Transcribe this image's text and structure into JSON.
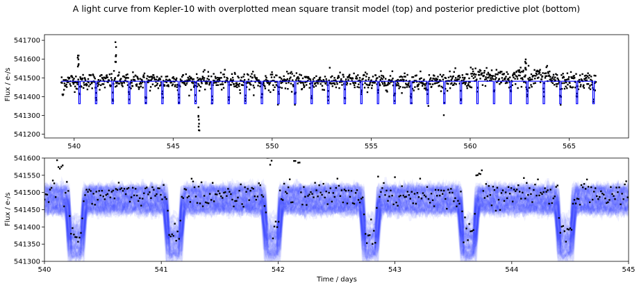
{
  "title": "A light curve from Kepler-10 with overplotted mean square transit model (top) and posterior predictive plot (bottom)",
  "colors": {
    "data": "#000000",
    "model": "#0000ff",
    "posterior": "#1f2bff",
    "axes": "#000000"
  },
  "chart_data": [
    {
      "type": "line",
      "panel": "top",
      "title": "",
      "xlabel": "",
      "ylabel": "Flux / e-/s",
      "xlim": [
        538.5,
        568.0
      ],
      "ylim": [
        541180,
        541730
      ],
      "x_ticks": [
        540,
        545,
        550,
        555,
        560,
        565
      ],
      "y_ticks": [
        541200,
        541300,
        541400,
        541500,
        541600,
        541700
      ],
      "grid": false,
      "data_range": [
        539.35,
        566.35
      ],
      "baseline_flux": 541482,
      "transit_flux": 541362,
      "transit_period": 0.8375,
      "transit_epoch": 540.27,
      "transit_duration": 0.075,
      "noise_sigma": 22,
      "events": [
        {
          "x": 540.2,
          "y": 541630,
          "label": ""
        },
        {
          "x": 542.1,
          "y": 541700,
          "label": ""
        },
        {
          "x": 546.3,
          "y": 541215,
          "label": ""
        },
        {
          "x": 562.8,
          "y": 541600,
          "label": ""
        }
      ],
      "series": [
        {
          "name": "",
          "style": "data points"
        },
        {
          "name": "",
          "style": "transit model"
        }
      ]
    },
    {
      "type": "line",
      "panel": "bottom",
      "title": "",
      "xlabel": "Time / days",
      "ylabel": "Flux / e-/s",
      "xlim": [
        540,
        545
      ],
      "ylim": [
        541300,
        541600
      ],
      "x_ticks": [
        540,
        541,
        542,
        543,
        544,
        545
      ],
      "y_ticks": [
        541300,
        541350,
        541400,
        541450,
        541500,
        541550,
        541600
      ],
      "grid": false,
      "baseline_flux": 541480,
      "transit_flux": 541355,
      "transit_centers": [
        540.27,
        541.11,
        541.95,
        542.79,
        543.63,
        544.46
      ],
      "transit_duration": 0.15,
      "series": [
        {
          "name": "",
          "style": "posterior predictive draws"
        },
        {
          "name": "",
          "style": "data points"
        }
      ]
    }
  ]
}
